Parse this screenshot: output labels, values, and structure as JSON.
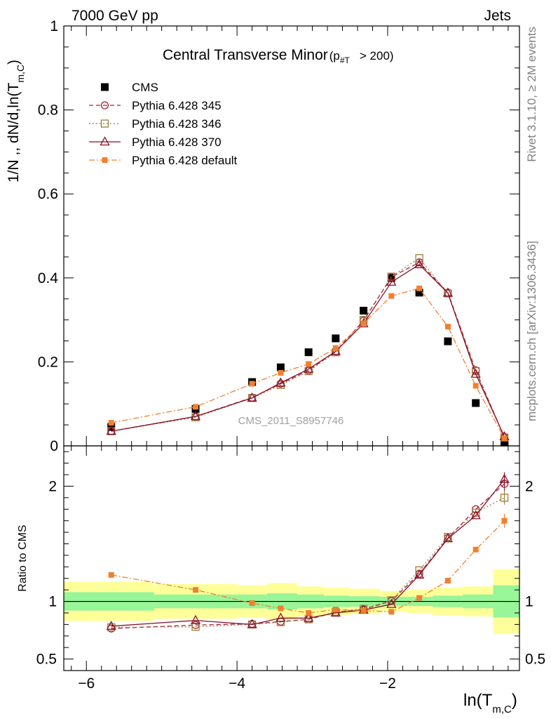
{
  "header": {
    "left": "7000 GeV pp",
    "right": "Jets"
  },
  "side_labels": {
    "top": "Rivet 3.1.10, ≥ 2M events",
    "bottom": "mcplots.cern.ch [arXiv:1306.3436]"
  },
  "colors": {
    "cms": "#000000",
    "p345": "#a0203a",
    "p346": "#9c7f3a",
    "p370": "#8b0f2a",
    "pdefault": "#f08030",
    "band_inner": "#98f598",
    "band_outer": "#ffff99"
  },
  "chart_data": [
    {
      "type": "scatter",
      "title": "Central Transverse Minor",
      "title_suffix": "(p",
      "title_sub": "#T",
      "title_cut": "> 200)",
      "ylabel": "1/N ,, dN/d,ln(T",
      "ylabel_sub": "m,C",
      "ylabel_close": ")",
      "ylim": [
        0,
        1
      ],
      "y_ticks": [
        0,
        0.2,
        0.4,
        0.6,
        0.8,
        1
      ],
      "y_tick_labels": [
        "0",
        "0.2",
        "0.4",
        "0.6",
        "0.8",
        "1"
      ],
      "watermark": "CMS_2011_S8957746",
      "legend_position": "top-left",
      "x": [
        -5.67,
        -4.55,
        -3.8,
        -3.42,
        -3.05,
        -2.69,
        -2.32,
        -1.95,
        -1.58,
        -1.2,
        -0.83,
        -0.45
      ],
      "series": [
        {
          "name": "CMS",
          "key": "cms",
          "marker": "filled-square",
          "line": "none",
          "values": [
            0.045,
            0.088,
            0.152,
            0.187,
            0.223,
            0.256,
            0.322,
            0.4,
            0.365,
            0.249,
            0.102,
            0.008
          ]
        },
        {
          "name": "Pythia 6.428 345",
          "key": "p345",
          "marker": "open-circle",
          "line": "dashed",
          "values": [
            0.035,
            0.07,
            0.115,
            0.148,
            0.18,
            0.225,
            0.298,
            0.402,
            0.437,
            0.365,
            0.18,
            0.02
          ]
        },
        {
          "name": "Pythia 6.428 346",
          "key": "p346",
          "marker": "open-square",
          "line": "dotted",
          "values": [
            0.035,
            0.068,
            0.114,
            0.145,
            0.178,
            0.223,
            0.3,
            0.403,
            0.447,
            0.363,
            0.178,
            0.02
          ]
        },
        {
          "name": "Pythia 6.428 370",
          "key": "p370",
          "marker": "open-triangle",
          "line": "solid",
          "values": [
            0.035,
            0.07,
            0.114,
            0.15,
            0.183,
            0.225,
            0.291,
            0.39,
            0.432,
            0.364,
            0.171,
            0.022
          ]
        },
        {
          "name": "Pythia 6.428 default",
          "key": "pdefault",
          "marker": "small-filled-square",
          "line": "dashdot",
          "values": [
            0.055,
            0.093,
            0.148,
            0.174,
            0.195,
            0.233,
            0.292,
            0.357,
            0.375,
            0.284,
            0.143,
            0.018
          ]
        }
      ]
    },
    {
      "type": "scatter",
      "ylabel": "Ratio to CMS",
      "xlabel": "ln(T",
      "xlabel_sub": "m,C",
      "xlabel_close": ")",
      "xlim": [
        -6.3,
        -0.25
      ],
      "x_ticks": [
        -6,
        -4,
        -2
      ],
      "x_tick_labels": [
        "−6",
        "−4",
        "−2"
      ],
      "ylim": [
        0.4,
        2.35
      ],
      "y_ticks": [
        0.5,
        1,
        2
      ],
      "y_tick_labels": [
        "0.5",
        "1",
        "2"
      ],
      "x": [
        -5.67,
        -4.55,
        -3.8,
        -3.42,
        -3.05,
        -2.69,
        -2.32,
        -1.95,
        -1.58,
        -1.2,
        -0.83,
        -0.45
      ],
      "bin_edges": [
        -6.3,
        -5.1,
        -4.0,
        -3.6,
        -3.2,
        -2.85,
        -2.5,
        -2.1,
        -1.75,
        -1.4,
        -1.0,
        -0.6,
        -0.25
      ],
      "band_inner": [
        0.08,
        0.06,
        0.06,
        0.07,
        0.06,
        0.05,
        0.045,
        0.04,
        0.04,
        0.05,
        0.06,
        0.14
      ],
      "band_outer": [
        0.17,
        0.15,
        0.14,
        0.16,
        0.13,
        0.12,
        0.11,
        0.09,
        0.1,
        0.12,
        0.13,
        0.28
      ],
      "series": [
        {
          "name": "Pythia 6.428 345",
          "key": "p345",
          "marker": "open-circle",
          "line": "dashed",
          "values": [
            0.765,
            0.795,
            0.805,
            0.825,
            0.845,
            0.905,
            0.93,
            1.005,
            1.24,
            1.55,
            1.8,
            2.02
          ]
        },
        {
          "name": "Pythia 6.428 346",
          "key": "p346",
          "marker": "open-square",
          "line": "dotted",
          "values": [
            0.775,
            0.78,
            0.8,
            0.82,
            0.845,
            0.91,
            0.935,
            1.01,
            1.27,
            1.56,
            1.77,
            1.9
          ]
        },
        {
          "name": "Pythia 6.428 370",
          "key": "p370",
          "marker": "open-triangle",
          "line": "solid",
          "values": [
            0.785,
            0.835,
            0.8,
            0.855,
            0.855,
            0.9,
            0.925,
            0.975,
            1.23,
            1.545,
            1.745,
            2.06
          ]
        },
        {
          "name": "Pythia 6.428 default",
          "key": "pdefault",
          "marker": "small-filled-square",
          "line": "dashdot",
          "values": [
            1.23,
            1.1,
            0.985,
            0.94,
            0.9,
            0.93,
            0.92,
            0.91,
            1.03,
            1.18,
            1.45,
            1.7
          ]
        }
      ]
    }
  ]
}
